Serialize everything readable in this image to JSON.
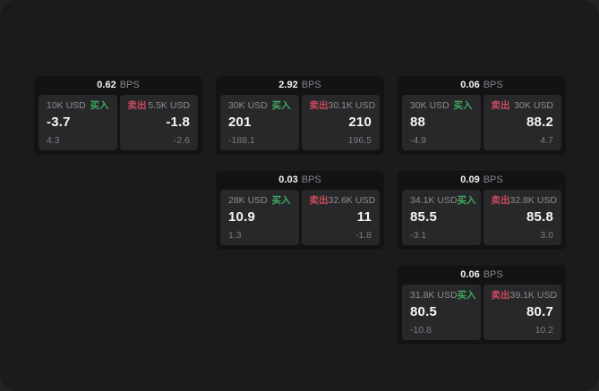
{
  "labels": {
    "bps": "BPS",
    "buy": "买入",
    "sell": "卖出"
  },
  "colors": {
    "page_bg": "#1b1b1d",
    "card_bg": "#131315",
    "panel_bg": "#28282b",
    "buy_green": "#3fa860",
    "sell_red": "#c84b5d",
    "value_white": "#f5f5f7",
    "muted_gray": "#8c8c90"
  },
  "cards": [
    {
      "col": 1,
      "row": 1,
      "bps": "0.62",
      "buy": {
        "amount": "10K USD",
        "value": "-3.7",
        "sub": "4.3"
      },
      "sell": {
        "amount": "5.5K USD",
        "value": "-1.8",
        "sub": "-2.6"
      }
    },
    {
      "col": 2,
      "row": 1,
      "bps": "2.92",
      "buy": {
        "amount": "30K USD",
        "value": "201",
        "sub": "-188.1"
      },
      "sell": {
        "amount": "30.1K USD",
        "value": "210",
        "sub": "196.5"
      }
    },
    {
      "col": 3,
      "row": 1,
      "bps": "0.06",
      "buy": {
        "amount": "30K USD",
        "value": "88",
        "sub": "-4.9"
      },
      "sell": {
        "amount": "30K USD",
        "value": "88.2",
        "sub": "4.7"
      }
    },
    {
      "col": 2,
      "row": 2,
      "bps": "0.03",
      "buy": {
        "amount": "28K USD",
        "value": "10.9",
        "sub": "1.3"
      },
      "sell": {
        "amount": "32.6K USD",
        "value": "11",
        "sub": "-1.8"
      }
    },
    {
      "col": 3,
      "row": 2,
      "bps": "0.09",
      "buy": {
        "amount": "34.1K USD",
        "value": "85.5",
        "sub": "-3.1"
      },
      "sell": {
        "amount": "32.8K USD",
        "value": "85.8",
        "sub": "3.0"
      }
    },
    {
      "col": 3,
      "row": 3,
      "bps": "0.06",
      "buy": {
        "amount": "31.8K USD",
        "value": "80.5",
        "sub": "-10.8"
      },
      "sell": {
        "amount": "39.1K USD",
        "value": "80.7",
        "sub": "10.2"
      }
    }
  ]
}
